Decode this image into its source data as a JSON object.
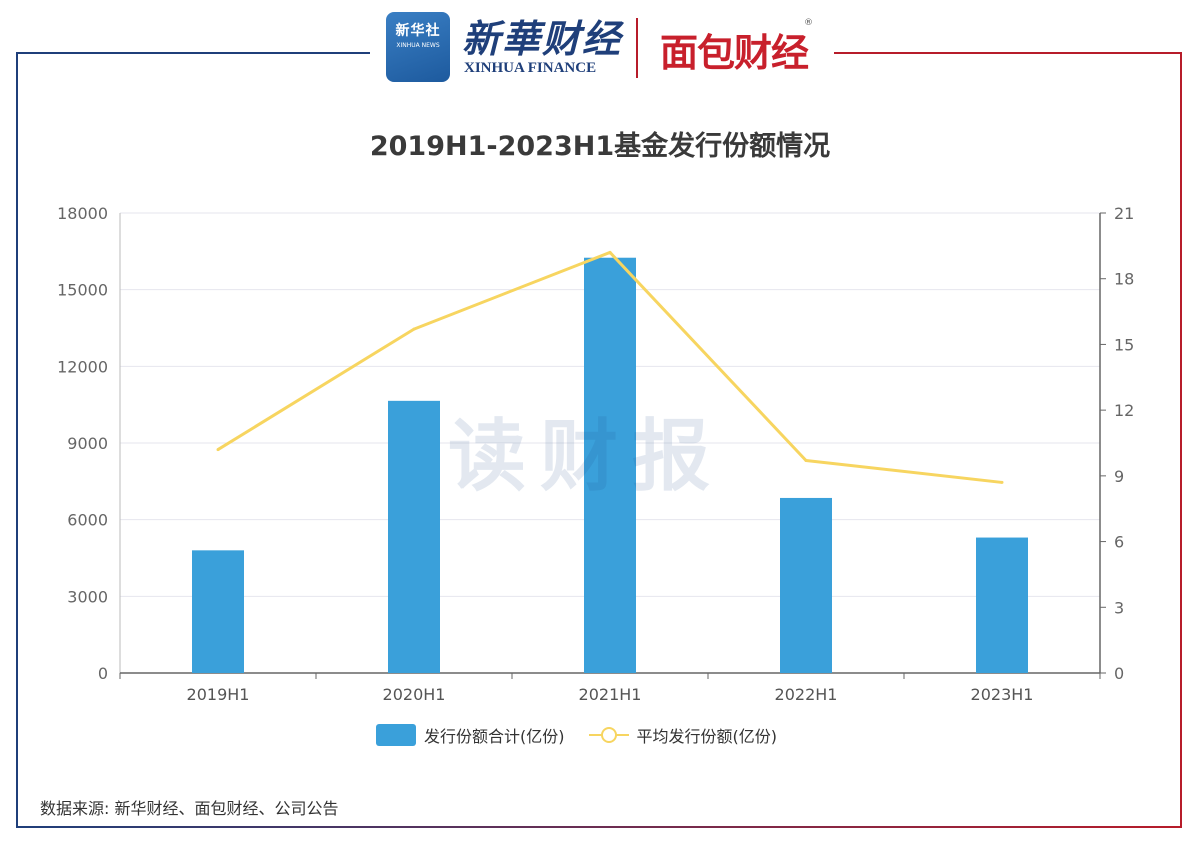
{
  "header": {
    "xinhua_badge_cn": "新华社",
    "xinhua_badge_en": "XINHUA NEWS",
    "xinhua_finance_cn": "新華财经",
    "xinhua_finance_en": "XINHUA FINANCE",
    "mianbao_logo": "面包财经",
    "registered_mark": "®"
  },
  "watermark": "读财报",
  "source": "数据来源: 新华财经、面包财经、公司公告",
  "colors": {
    "bar": "#3aa0da",
    "line": "#f7d560",
    "frame_left": "#1f3f7a",
    "frame_right": "#b71c2a"
  },
  "chart_data": {
    "type": "bar",
    "title": "2019H1-2023H1基金发行份额情况",
    "categories": [
      "2019H1",
      "2020H1",
      "2021H1",
      "2022H1",
      "2023H1"
    ],
    "series": [
      {
        "name": "发行份额合计(亿份)",
        "type": "bar",
        "axis": "left",
        "values": [
          4800,
          10650,
          16250,
          6850,
          5300
        ]
      },
      {
        "name": "平均发行份额(亿份)",
        "type": "line",
        "axis": "right",
        "values": [
          10.2,
          15.7,
          19.2,
          9.7,
          8.7
        ]
      }
    ],
    "y_left": {
      "min": 0,
      "max": 18000,
      "ticks": [
        "0",
        "3000",
        "6000",
        "9000",
        "12000",
        "15000",
        "18000"
      ]
    },
    "y_right": {
      "min": 0,
      "max": 21,
      "ticks": [
        "0",
        "3",
        "6",
        "9",
        "12",
        "15",
        "18",
        "21"
      ]
    },
    "grid": true,
    "legend_position": "bottom-center"
  }
}
